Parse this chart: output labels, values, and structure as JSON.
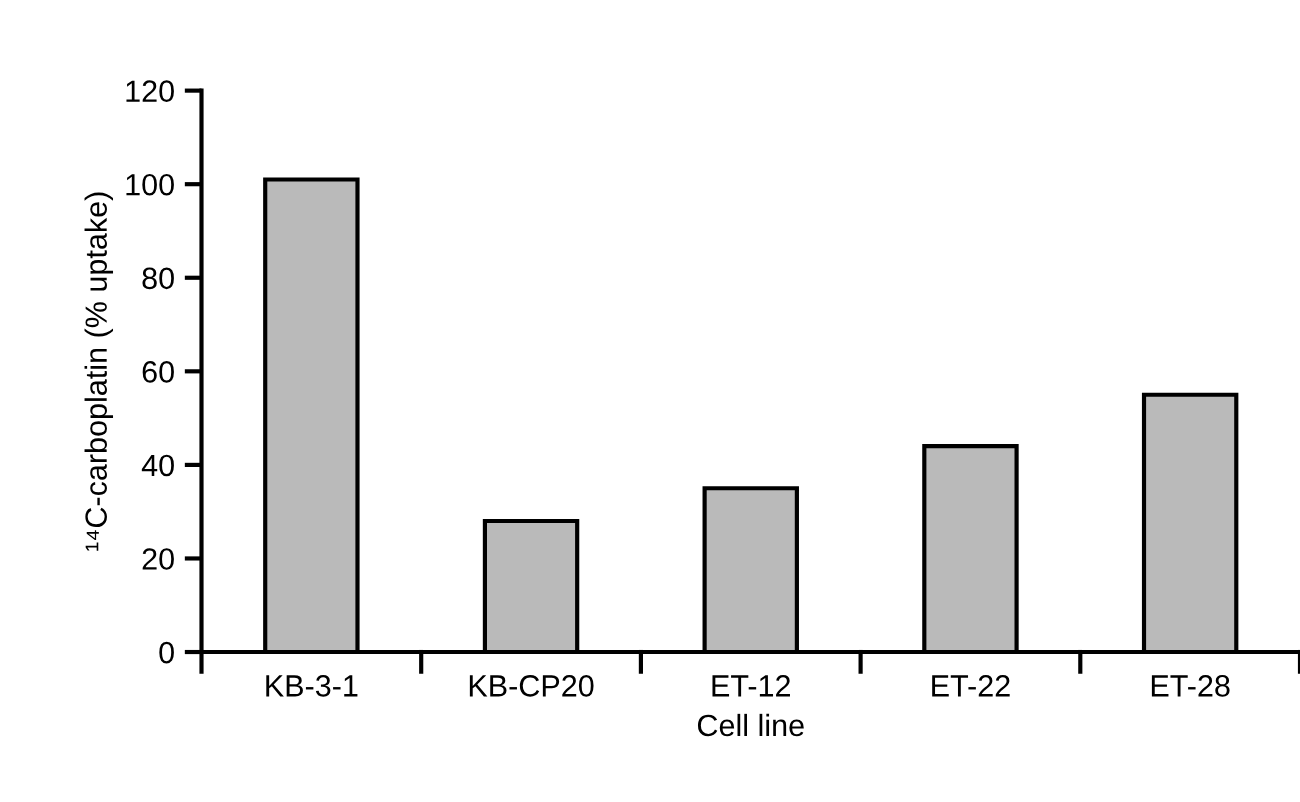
{
  "chart_data": {
    "type": "bar",
    "xlabel": "Cell line",
    "ylabel": "¹⁴C-carboplatin (% uptake)",
    "categories": [
      "KB-3-1",
      "KB-CP20",
      "ET-12",
      "ET-22",
      "ET-28"
    ],
    "values": [
      101,
      28,
      35,
      44,
      55
    ],
    "color": "#bababa",
    "ylim": [
      0,
      120
    ],
    "yticks": [
      0,
      20,
      40,
      60,
      80,
      100,
      120
    ],
    "grid": false,
    "legend": false
  }
}
